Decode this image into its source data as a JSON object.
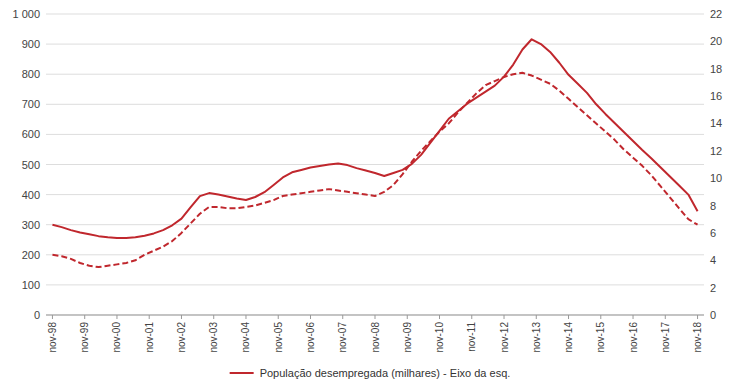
{
  "chart_data": {
    "type": "line",
    "x": [
      0,
      0.2857142857,
      0.5714285714,
      0.8571428571,
      1.1428571429,
      1.4285714286,
      1.7142857143,
      2,
      2.2857142857,
      2.5714285714,
      2.8571428571,
      3.1428571429,
      3.4285714286,
      3.7142857143,
      4,
      4.2857142857,
      4.5714285714,
      4.8571428571,
      5.1428571429,
      5.4285714286,
      5.7142857143,
      6,
      6.2857142857,
      6.5714285714,
      6.8571428571,
      7.1428571429,
      7.4285714286,
      7.7142857143,
      8,
      8.2857142857,
      8.5714285714,
      8.8571428571,
      9.1428571429,
      9.4285714286,
      9.7142857143,
      10,
      10.2857142857,
      10.5714285714,
      10.8571428571,
      11.1428571429,
      11.4285714286,
      11.7142857143,
      12,
      12.2857142857,
      12.5714285714,
      12.8571428571,
      13.1428571429,
      13.4285714286,
      13.7142857143,
      14,
      14.2857142857,
      14.5714285714,
      14.8571428571,
      15.1428571429,
      15.4285714286,
      15.7142857143,
      16,
      16.2857142857,
      16.5714285714,
      16.8571428571,
      17.1428571429,
      17.4285714286,
      17.7142857143,
      18,
      18.2857142857,
      18.5714285714,
      18.8571428571,
      19.1428571429,
      19.4285714286,
      19.7142857143,
      20
    ],
    "xlim": [
      -0.2,
      20.2
    ],
    "xticks": [
      {
        "value": 0,
        "label": "nov-98"
      },
      {
        "value": 1,
        "label": "nov-99"
      },
      {
        "value": 2,
        "label": "nov-00"
      },
      {
        "value": 3,
        "label": "nov-01"
      },
      {
        "value": 4,
        "label": "nov-02"
      },
      {
        "value": 5,
        "label": "nov-03"
      },
      {
        "value": 6,
        "label": "nov-04"
      },
      {
        "value": 7,
        "label": "nov-05"
      },
      {
        "value": 8,
        "label": "nov-06"
      },
      {
        "value": 9,
        "label": "nov-07"
      },
      {
        "value": 10,
        "label": "nov-08"
      },
      {
        "value": 11,
        "label": "nov-09"
      },
      {
        "value": 12,
        "label": "nov-10"
      },
      {
        "value": 13,
        "label": "nov-11"
      },
      {
        "value": 14,
        "label": "nov-12"
      },
      {
        "value": 15,
        "label": "nov-13"
      },
      {
        "value": 16,
        "label": "nov-14"
      },
      {
        "value": 17,
        "label": "nov-15"
      },
      {
        "value": 18,
        "label": "nov-16"
      },
      {
        "value": 19,
        "label": "nov-17"
      },
      {
        "value": 20,
        "label": "nov-18"
      }
    ],
    "ylim": [
      0,
      1000
    ],
    "yticks": [
      0,
      100,
      200,
      300,
      400,
      500,
      600,
      700,
      800,
      900,
      {
        "value": 1000,
        "label": "1 000"
      }
    ],
    "y2lim": [
      0,
      22
    ],
    "y2ticks": [
      0,
      2,
      4,
      6,
      8,
      10,
      12,
      14,
      16,
      18,
      20,
      22
    ],
    "grid": true,
    "legend": "bottom",
    "series": [
      {
        "name": "População desempregada (milhares) - Eixo da esq.",
        "color": "#c0272d",
        "line_style": "solid",
        "values": [
          300,
          292,
          282,
          274,
          268,
          262,
          258,
          256,
          256,
          258,
          263,
          271,
          282,
          298,
          320,
          358,
          395,
          405,
          400,
          394,
          387,
          382,
          392,
          408,
          432,
          457,
          474,
          482,
          490,
          495,
          500,
          503,
          498,
          488,
          480,
          472,
          462,
          472,
          482,
          502,
          532,
          572,
          612,
          652,
          677,
          702,
          722,
          742,
          762,
          792,
          832,
          882,
          916,
          900,
          874,
          838,
          798,
          768,
          738,
          700,
          668,
          638,
          608,
          578,
          548,
          520,
          490,
          460,
          430,
          400,
          345
        ]
      },
      {
        "color": "#c0272d",
        "line_style": "dashed",
        "axis": "y2",
        "values": [
          4.4,
          4.3,
          4.1,
          3.8,
          3.6,
          3.5,
          3.6,
          3.7,
          3.8,
          4.0,
          4.4,
          4.7,
          5.0,
          5.4,
          6.0,
          6.7,
          7.4,
          7.9,
          7.9,
          7.8,
          7.8,
          7.9,
          8.0,
          8.2,
          8.4,
          8.7,
          8.8,
          8.9,
          9.0,
          9.1,
          9.2,
          9.1,
          9.0,
          8.9,
          8.8,
          8.7,
          9.0,
          9.5,
          10.3,
          11.2,
          12.0,
          12.7,
          13.4,
          14.0,
          14.8,
          15.5,
          16.2,
          16.8,
          17.1,
          17.4,
          17.6,
          17.7,
          17.5,
          17.2,
          16.9,
          16.4,
          15.8,
          15.2,
          14.6,
          14.0,
          13.4,
          12.8,
          12.1,
          11.5,
          10.9,
          10.2,
          9.4,
          8.6,
          7.8,
          7.0,
          6.6
        ]
      }
    ]
  }
}
